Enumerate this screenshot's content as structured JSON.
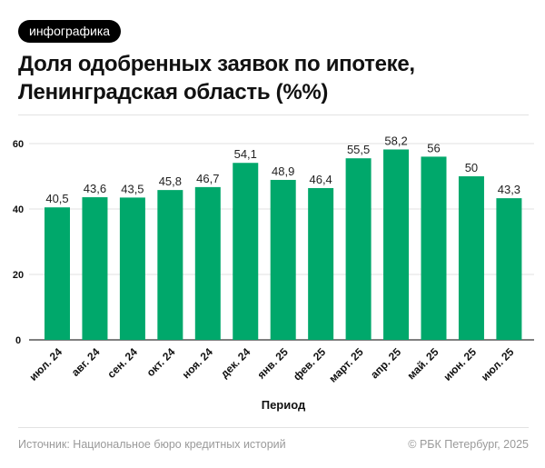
{
  "badge": "инфографика",
  "title": "Доля одобренных заявок по ипотеке, Ленинградская область (%%)",
  "footer": {
    "source": "Источник: Национальное бюро кредитных историй",
    "copyright": "© РБК Петербург, 2025"
  },
  "chart_data": {
    "type": "bar",
    "title": "Доля одобренных заявок по ипотеке, Ленинградская область (%%)",
    "xlabel": "Период",
    "ylabel": "",
    "categories": [
      "июл. 24",
      "авг. 24",
      "сен. 24",
      "окт. 24",
      "ноя. 24",
      "дек. 24",
      "янв. 25",
      "фев. 25",
      "март. 25",
      "апр. 25",
      "май. 25",
      "июн. 25",
      "июл. 25"
    ],
    "values": [
      40.5,
      43.6,
      43.5,
      45.8,
      46.7,
      54.1,
      48.9,
      46.4,
      55.5,
      58.2,
      56,
      50,
      43.3
    ],
    "data_labels": [
      "40,5",
      "43,6",
      "43,5",
      "45,8",
      "46,7",
      "54,1",
      "48,9",
      "46,4",
      "55,5",
      "58,2",
      "56",
      "50",
      "43,3"
    ],
    "ylim": [
      0,
      60
    ],
    "yticks": [
      0,
      20,
      40,
      60
    ],
    "grid": true,
    "bar_color": "#00a86b"
  }
}
